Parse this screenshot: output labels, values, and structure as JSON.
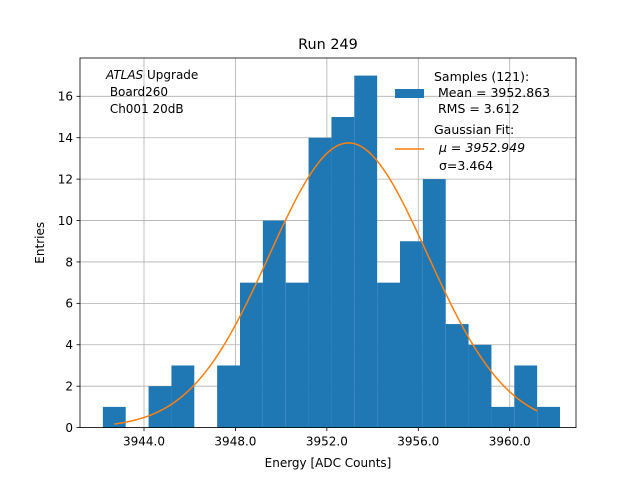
{
  "chart_data": {
    "type": "bar",
    "title": "Run 249",
    "xlabel": "Energy [ADC Counts]",
    "ylabel": "Entries",
    "xlim": [
      3941.2,
      3962.9
    ],
    "ylim": [
      0,
      17.85
    ],
    "grid": true,
    "bin_edges": [
      3942.2,
      3943.2,
      3944.2,
      3945.2,
      3946.2,
      3947.2,
      3948.2,
      3949.2,
      3950.2,
      3951.2,
      3952.2,
      3953.2,
      3954.2,
      3955.2,
      3956.2,
      3957.2,
      3958.2,
      3959.2,
      3960.2,
      3961.2,
      3962.2
    ],
    "counts": [
      1,
      0,
      2,
      3,
      0,
      3,
      7,
      10,
      7,
      14,
      15,
      17,
      7,
      9,
      12,
      5,
      4,
      1,
      3,
      1
    ],
    "bar_color": "#1f77b4",
    "x_ticks": [
      3944.0,
      3948.0,
      3952.0,
      3956.0,
      3960.0
    ],
    "x_tick_labels": [
      "3944.0",
      "3948.0",
      "3952.0",
      "3956.0",
      "3960.0"
    ],
    "y_ticks": [
      0,
      2,
      4,
      6,
      8,
      10,
      12,
      14,
      16
    ],
    "y_tick_labels": [
      "0",
      "2",
      "4",
      "6",
      "8",
      "10",
      "12",
      "14",
      "16"
    ],
    "fit": {
      "type": "gaussian",
      "mu": 3952.949,
      "sigma": 3.464,
      "amplitude": 13.75,
      "x_range": [
        3942.7,
        3961.2
      ],
      "color": "#ff7f0e"
    },
    "annotation": {
      "line1_italic": "ATLAS",
      "line1_rest": " Upgrade",
      "line2": " Board260",
      "line3": " Ch001 20dB"
    },
    "legend": {
      "placement": "top-right",
      "hist_lines": [
        "Samples (121):",
        " Mean = 3952.863",
        " RMS = 3.612"
      ],
      "fit_line1": "Gaussian Fit:",
      "fit_mu_text": "μ = 3952.949",
      "fit_sigma_text": "σ=3.464"
    }
  }
}
